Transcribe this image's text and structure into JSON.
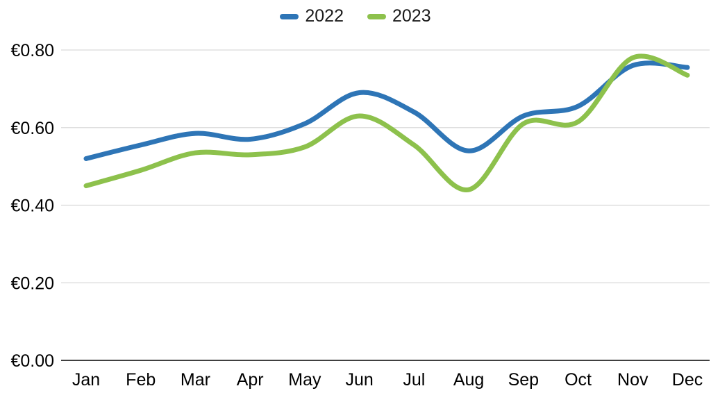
{
  "chart_data": {
    "type": "line",
    "title": "",
    "xlabel": "",
    "ylabel": "",
    "currency_symbol": "€",
    "categories": [
      "Jan",
      "Feb",
      "Mar",
      "Apr",
      "May",
      "Jun",
      "Jul",
      "Aug",
      "Sep",
      "Oct",
      "Nov",
      "Dec"
    ],
    "series": [
      {
        "name": "2022",
        "color": "#2e75b6",
        "values": [
          0.52,
          0.555,
          0.585,
          0.57,
          0.61,
          0.69,
          0.64,
          0.54,
          0.63,
          0.655,
          0.76,
          0.755
        ]
      },
      {
        "name": "2023",
        "color": "#8dc14c",
        "values": [
          0.45,
          0.49,
          0.535,
          0.53,
          0.55,
          0.63,
          0.555,
          0.44,
          0.61,
          0.615,
          0.78,
          0.735
        ]
      }
    ],
    "y_ticks": [
      {
        "label": "€0.00",
        "value": 0.0
      },
      {
        "label": "€0.20",
        "value": 0.2
      },
      {
        "label": "€0.40",
        "value": 0.4
      },
      {
        "label": "€0.60",
        "value": 0.6
      },
      {
        "label": "€0.80",
        "value": 0.8
      }
    ],
    "ylim": [
      0.0,
      0.8
    ],
    "grid": true,
    "smooth": true,
    "legend_position": "top-center"
  },
  "style": {
    "grid_color": "#d9d9d9",
    "axis_color": "#404040",
    "text_color": "#000000",
    "background": "#ffffff",
    "line_width": 7
  }
}
